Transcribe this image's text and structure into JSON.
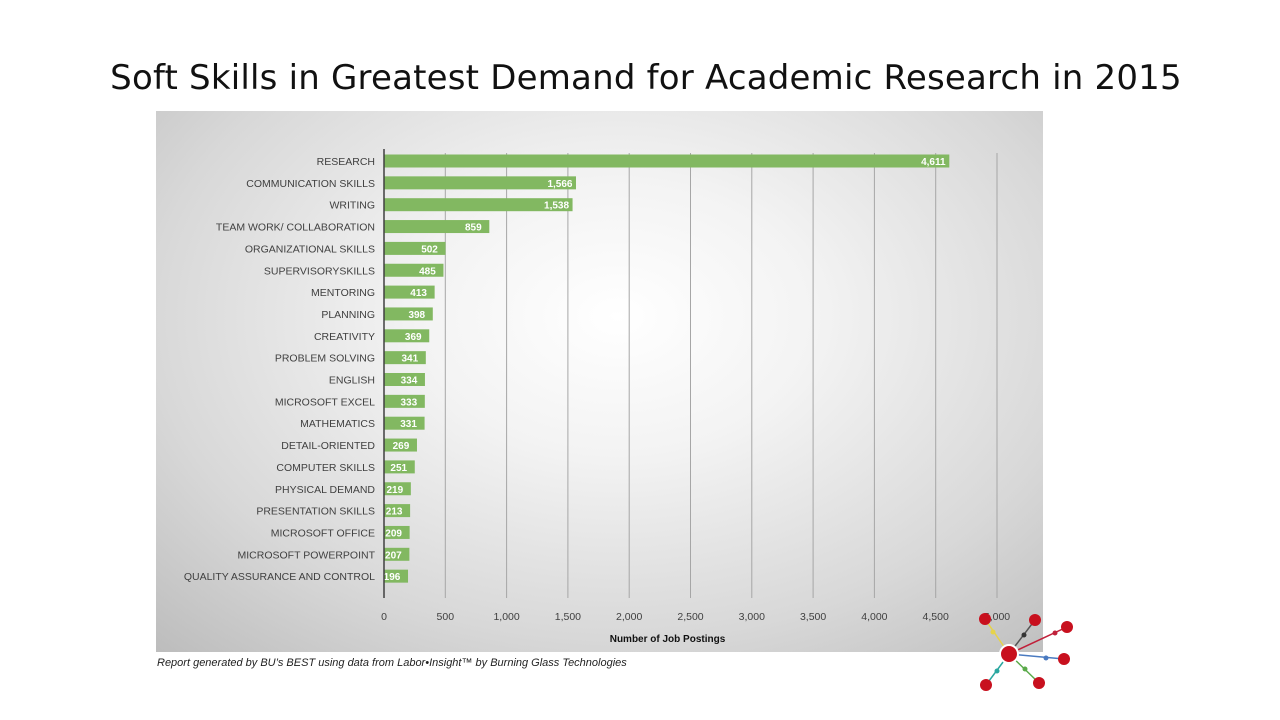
{
  "slide": {
    "title": "Soft Skills in Greatest Demand for Academic Research in 2015",
    "footnote": "Report generated by BU’s BEST using data from Labor•Insight™ by Burning Glass Technologies"
  },
  "chart_data": {
    "type": "bar",
    "orientation": "horizontal",
    "categories": [
      "RESEARCH",
      "COMMUNICATION SKILLS",
      "WRITING",
      "TEAM WORK/ COLLABORATION",
      "ORGANIZATIONAL SKILLS",
      "SUPERVISORYSKILLS",
      "MENTORING",
      "PLANNING",
      "CREATIVITY",
      "PROBLEM SOLVING",
      "ENGLISH",
      "MICROSOFT EXCEL",
      "MATHEMATICS",
      "DETAIL-ORIENTED",
      "COMPUTER SKILLS",
      "PHYSICAL DEMAND",
      "PRESENTATION SKILLS",
      "MICROSOFT OFFICE",
      "MICROSOFT POWERPOINT",
      "QUALITY ASSURANCE AND CONTROL"
    ],
    "values": [
      4611,
      1566,
      1538,
      859,
      502,
      485,
      413,
      398,
      369,
      341,
      334,
      333,
      331,
      269,
      251,
      219,
      213,
      209,
      207,
      196
    ],
    "value_labels": [
      "4,611",
      "1,566",
      "1,538",
      "859",
      "502",
      "485",
      "413",
      "398",
      "369",
      "341",
      "334",
      "333",
      "331",
      "269",
      "251",
      "219",
      "213",
      "209",
      "207",
      "196"
    ],
    "xlabel": "Number of Job Postings",
    "xlim": [
      0,
      5000
    ],
    "xticks": [
      0,
      500,
      1000,
      1500,
      2000,
      2500,
      3000,
      3500,
      4000,
      4500,
      5000
    ],
    "xtick_labels": [
      "0",
      "500",
      "1,000",
      "1,500",
      "2,000",
      "2,500",
      "3,000",
      "3,500",
      "4,000",
      "4,500",
      "5,000"
    ],
    "grid": "vertical",
    "legend": "none",
    "colors": {
      "bar": "#82b861",
      "grid": "#a6a6a6",
      "axis": "#404040",
      "value_label": "#ffffff"
    }
  }
}
